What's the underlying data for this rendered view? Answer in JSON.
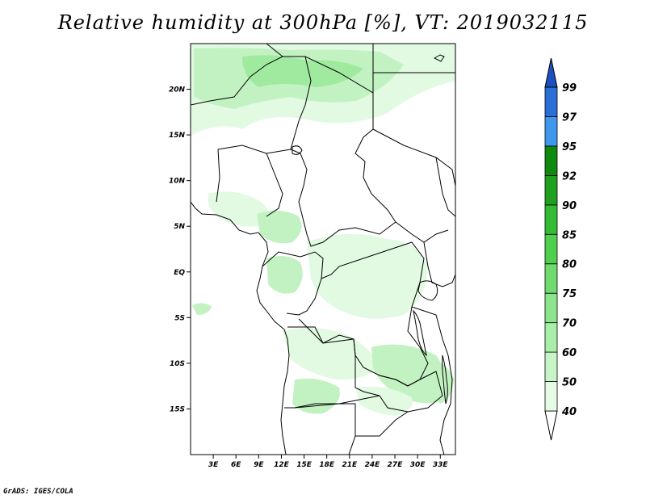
{
  "title": "Relative humidity at 300hPa [%], VT: 2019032115",
  "footer": "GrADS: IGES/COLA",
  "map": {
    "lon_range": [
      0,
      35
    ],
    "lat_range": [
      -20,
      25
    ],
    "lat_ticks": [
      {
        "value": 20,
        "label": "20N"
      },
      {
        "value": 15,
        "label": "15N"
      },
      {
        "value": 10,
        "label": "10N"
      },
      {
        "value": 5,
        "label": "5N"
      },
      {
        "value": 0,
        "label": "EQ"
      },
      {
        "value": -5,
        "label": "5S"
      },
      {
        "value": -10,
        "label": "10S"
      },
      {
        "value": -15,
        "label": "15S"
      }
    ],
    "lon_ticks": [
      {
        "value": 3,
        "label": "3E"
      },
      {
        "value": 6,
        "label": "6E"
      },
      {
        "value": 9,
        "label": "9E"
      },
      {
        "value": 12,
        "label": "12E"
      },
      {
        "value": 15,
        "label": "15E"
      },
      {
        "value": 18,
        "label": "18E"
      },
      {
        "value": 21,
        "label": "21E"
      },
      {
        "value": 24,
        "label": "24E"
      },
      {
        "value": 27,
        "label": "27E"
      },
      {
        "value": 30,
        "label": "30E"
      },
      {
        "value": 33,
        "label": "33E"
      }
    ]
  },
  "colorbar": {
    "levels": [
      "40",
      "50",
      "60",
      "70",
      "75",
      "80",
      "85",
      "90",
      "92",
      "95",
      "97",
      "99"
    ],
    "colors": [
      "#ffffff",
      "#e6fbe6",
      "#c8f5c8",
      "#a8eda8",
      "#8ce48c",
      "#6fdb6f",
      "#4ed04e",
      "#33bb33",
      "#1fa01f",
      "#0e8a0e",
      "#3f98ec",
      "#2a6fd8",
      "#1c50c0"
    ]
  },
  "humidity_colors": {
    "light": "#e2f9e2",
    "medium": "#c2f2c2",
    "strong": "#a0eaa0"
  }
}
